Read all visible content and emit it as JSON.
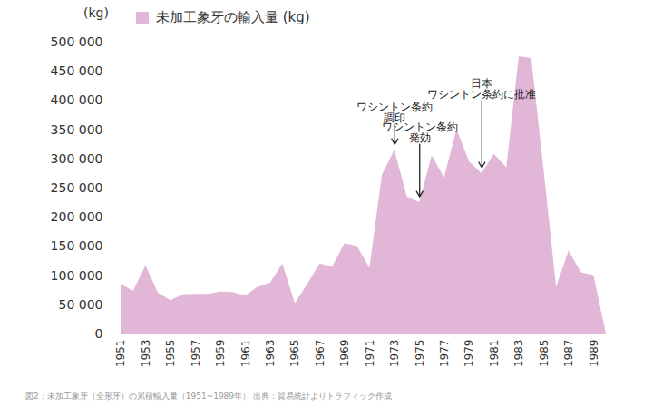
{
  "chart_data": {
    "type": "area",
    "y_label": "(kg)",
    "caption": "図2：未加工象牙（全形牙）の累積輸入量（1951~1989年） 出典：貿易統計よりトラフィック作成",
    "x": [
      1951,
      1952,
      1953,
      1954,
      1955,
      1956,
      1957,
      1958,
      1959,
      1960,
      1961,
      1962,
      1963,
      1964,
      1965,
      1966,
      1967,
      1968,
      1969,
      1970,
      1971,
      1972,
      1973,
      1974,
      1975,
      1976,
      1977,
      1978,
      1979,
      1980,
      1981,
      1982,
      1983,
      1984,
      1985,
      1986,
      1987,
      1988,
      1989,
      1990
    ],
    "series": [
      {
        "name": "未加工象牙の輸入量 (kg)",
        "color": "#e2b6d6",
        "values": [
          85000,
          73000,
          117000,
          70000,
          57000,
          67000,
          68000,
          68000,
          72000,
          71000,
          65000,
          80000,
          87000,
          120000,
          52000,
          85000,
          120000,
          115000,
          155000,
          150000,
          113000,
          272000,
          315000,
          235000,
          225000,
          305000,
          268000,
          350000,
          295000,
          275000,
          308000,
          285000,
          475000,
          472000,
          280000,
          80000,
          142000,
          105000,
          100000,
          0
        ]
      }
    ],
    "xlim": [
      1951,
      1990
    ],
    "xticks": [
      1951,
      1953,
      1955,
      1957,
      1959,
      1961,
      1963,
      1965,
      1967,
      1969,
      1971,
      1973,
      1975,
      1977,
      1979,
      1981,
      1983,
      1985,
      1987,
      1989
    ],
    "ylim": [
      0,
      500000
    ],
    "yticks": [
      0,
      {
        "value": 50000,
        "label": "50 000"
      },
      {
        "value": 100000,
        "label": "100 000"
      },
      {
        "value": 150000,
        "label": "150 000"
      },
      {
        "value": 200000,
        "label": "200 000"
      },
      {
        "value": 250000,
        "label": "250 000"
      },
      {
        "value": 300000,
        "label": "300 000"
      },
      {
        "value": 350000,
        "label": "350 000"
      },
      {
        "value": 400000,
        "label": "400 000"
      },
      {
        "value": 450000,
        "label": "450 000"
      },
      {
        "value": 500000,
        "label": "500 000"
      }
    ],
    "annotations": [
      {
        "text": "ワシントン条約\n調印",
        "x": 1973
      },
      {
        "text": "ワシントン条約\n発効",
        "x": 1975
      },
      {
        "text": "日本\nワシントン条約に批准",
        "x": 1980
      }
    ],
    "legend": "top-left",
    "grid": false
  }
}
